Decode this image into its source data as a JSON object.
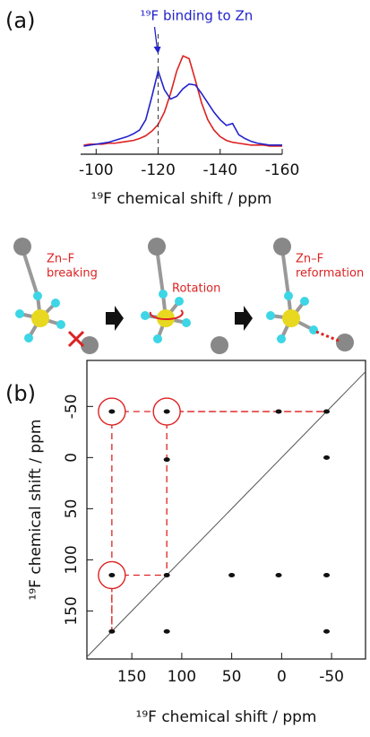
{
  "panels": {
    "a": "(a)",
    "b": "(b)"
  },
  "diagram": {
    "steps": [
      {
        "lines": [
          "Zn–F",
          "breaking"
        ]
      },
      {
        "lines": [
          "Rotation"
        ]
      },
      {
        "lines": [
          "Zn–F",
          "reformation"
        ]
      }
    ]
  },
  "chart_data": [
    {
      "type": "line",
      "x_label": "¹⁹F chemical shift / ppm",
      "annotation": {
        "text": "¹⁹F binding to Zn",
        "x": -120,
        "color": "#2222cc"
      },
      "x": [
        -96,
        -98,
        -100,
        -102,
        -104,
        -106,
        -108,
        -110,
        -112,
        -114,
        -116,
        -118,
        -120,
        -122,
        -124,
        -126,
        -128,
        -130,
        -132,
        -134,
        -136,
        -138,
        -140,
        -142,
        -144,
        -146,
        -148,
        -150,
        -152,
        -154,
        -156,
        -158,
        -160
      ],
      "series": [
        {
          "color": "#dd2222",
          "values": [
            0.03,
            0.04,
            0.04,
            0.04,
            0.05,
            0.05,
            0.06,
            0.07,
            0.08,
            0.1,
            0.13,
            0.18,
            0.25,
            0.38,
            0.58,
            0.82,
            0.98,
            0.95,
            0.72,
            0.48,
            0.3,
            0.19,
            0.12,
            0.08,
            0.06,
            0.05,
            0.04,
            0.03,
            0.03,
            0.03,
            0.02,
            0.02,
            0.02
          ]
        },
        {
          "color": "#2222cc",
          "values": [
            0.02,
            0.03,
            0.04,
            0.05,
            0.06,
            0.08,
            0.1,
            0.12,
            0.15,
            0.19,
            0.3,
            0.55,
            0.82,
            0.62,
            0.52,
            0.55,
            0.63,
            0.68,
            0.67,
            0.58,
            0.48,
            0.38,
            0.3,
            0.24,
            0.26,
            0.14,
            0.1,
            0.07,
            0.05,
            0.04,
            0.03,
            0.03,
            0.03
          ]
        }
      ],
      "xlim": [
        -95,
        -160
      ],
      "xticks": [
        -100,
        -120,
        -140,
        -160
      ],
      "ylim": [
        0,
        1.05
      ]
    },
    {
      "type": "scatter",
      "x_label": "¹⁹F chemical shift / ppm",
      "y_label": "¹⁹F chemical shift / ppm",
      "x": [
        170,
        115,
        3,
        -45,
        115,
        -45,
        170,
        115,
        50,
        3,
        -45,
        170,
        115,
        -45
      ],
      "y": [
        -45,
        -45,
        -45,
        -45,
        2,
        0,
        115,
        115,
        115,
        115,
        115,
        170,
        170,
        170
      ],
      "circled": [
        true,
        true,
        false,
        false,
        false,
        false,
        true,
        false,
        false,
        false,
        false,
        false,
        false,
        false
      ],
      "color": "#111111",
      "highlight_color": "#dd2222",
      "xlim": [
        195,
        -84
      ],
      "ylim": [
        -95,
        197
      ],
      "xticks": [
        150,
        100,
        50,
        0,
        -50
      ],
      "yticks": [
        -50,
        0,
        50,
        100,
        150
      ]
    }
  ]
}
